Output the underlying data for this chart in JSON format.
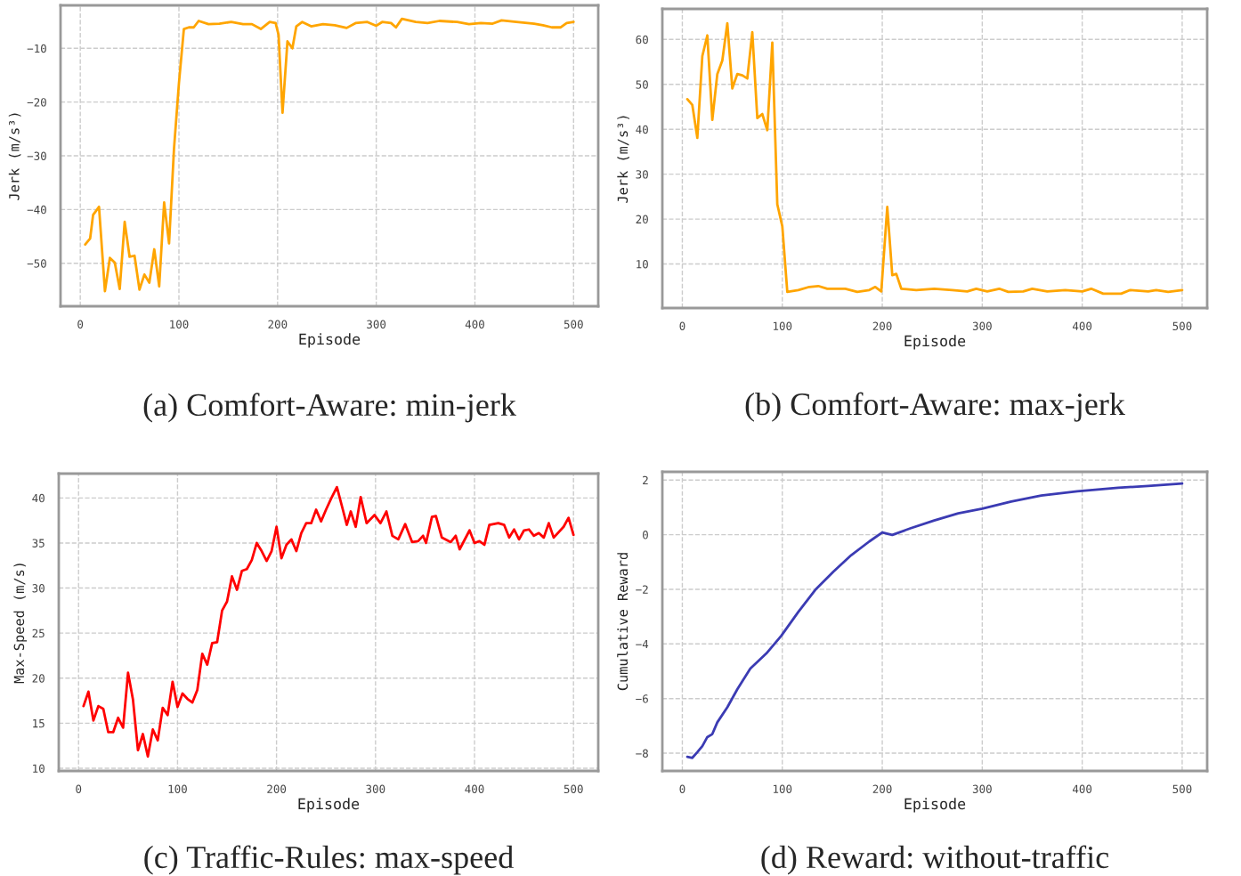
{
  "chart_data": [
    {
      "type": "line",
      "xlabel": "Episode",
      "ylabel": "Jerk (m/s³)",
      "annotations": [
        "(a) Comfort-Aware: min-jerk"
      ],
      "grid": true,
      "xlim": [
        -20,
        525
      ],
      "ylim": [
        -58,
        -2
      ],
      "xticks": [
        0,
        100,
        200,
        300,
        400,
        500
      ],
      "yticks": [
        {
          "value": -50,
          "label": "−50"
        },
        {
          "value": -40,
          "label": "−40"
        },
        {
          "value": -30,
          "label": "−30"
        },
        {
          "value": -20,
          "label": "−20"
        },
        {
          "value": -10,
          "label": "−10"
        }
      ],
      "x": [
        5,
        10,
        13,
        19,
        25,
        30,
        35,
        40,
        45,
        50,
        55,
        60,
        65,
        70,
        75,
        80,
        85,
        90,
        95,
        100,
        105,
        110,
        115,
        120,
        130,
        141,
        153,
        165,
        174,
        183,
        192,
        198,
        201,
        205,
        210,
        215,
        219,
        225,
        234,
        246,
        258,
        270,
        279,
        291,
        300,
        306,
        315,
        320,
        326,
        340,
        352,
        364,
        382,
        394,
        406,
        418,
        427,
        442,
        460,
        469,
        478,
        487,
        493,
        500
      ],
      "series": [
        {
          "color": "#ffa500",
          "values": [
            -46.5,
            -45.4,
            -41,
            -39.5,
            -55.2,
            -49,
            -49.9,
            -54.8,
            -42.3,
            -48.8,
            -48.6,
            -54.9,
            -52.1,
            -53.6,
            -47.4,
            -54.3,
            -38.7,
            -46.3,
            -28.7,
            -16.5,
            -6.4,
            -6.1,
            -6.1,
            -4.9,
            -5.5,
            -5.4,
            -5.1,
            -5.5,
            -5.5,
            -6.4,
            -5.1,
            -5.3,
            -7.5,
            -22,
            -8.7,
            -10,
            -5.9,
            -5.1,
            -5.9,
            -5.5,
            -5.7,
            -6.2,
            -5.3,
            -5.1,
            -5.8,
            -5.1,
            -5.3,
            -6.1,
            -4.5,
            -5.1,
            -5.3,
            -4.9,
            -5.1,
            -5.5,
            -5.3,
            -5.4,
            -4.8,
            -5.1,
            -5.4,
            -5.7,
            -6.1,
            -6.1,
            -5.3,
            -5.1
          ]
        }
      ]
    },
    {
      "type": "line",
      "xlabel": "Episode",
      "ylabel": "Jerk (m/s³)",
      "annotations": [
        "(b) Comfort-Aware: max-jerk"
      ],
      "grid": true,
      "xlim": [
        -20,
        525
      ],
      "ylim": [
        0.2,
        66.8
      ],
      "xticks": [
        0,
        100,
        200,
        300,
        400,
        500
      ],
      "yticks": [
        10,
        20,
        30,
        40,
        50,
        60
      ],
      "x": [
        5,
        10,
        15,
        20,
        25,
        30,
        35,
        40,
        45,
        50,
        55,
        60,
        65,
        70,
        75,
        80,
        85,
        90,
        95,
        100,
        105,
        116,
        127,
        136,
        145,
        163,
        175,
        187,
        193,
        199,
        205,
        210,
        214,
        219,
        234,
        252,
        270,
        285,
        294,
        305,
        317,
        326,
        341,
        350,
        365,
        383,
        400,
        409,
        421,
        439,
        448,
        466,
        474,
        486,
        500
      ],
      "series": [
        {
          "color": "#ffa500",
          "values": [
            46.7,
            45.4,
            38.1,
            56.3,
            60.9,
            42.1,
            52.3,
            55.3,
            63.6,
            49.1,
            52.3,
            52.0,
            51.3,
            61.6,
            42.5,
            43.4,
            39.8,
            59.3,
            23.3,
            18.4,
            3.8,
            4.2,
            4.9,
            5.1,
            4.5,
            4.5,
            3.8,
            4.2,
            4.9,
            3.9,
            22.7,
            7.5,
            7.8,
            4.5,
            4.2,
            4.5,
            4.2,
            3.9,
            4.5,
            3.9,
            4.5,
            3.8,
            3.9,
            4.5,
            3.9,
            4.2,
            3.9,
            4.5,
            3.4,
            3.4,
            4.2,
            3.9,
            4.2,
            3.8,
            4.2
          ]
        }
      ]
    },
    {
      "type": "line",
      "xlabel": "Episode",
      "ylabel": "Max-Speed (m/s)",
      "annotations": [
        "(c) Traffic-Rules: max-speed"
      ],
      "grid": true,
      "xlim": [
        -20,
        525
      ],
      "ylim": [
        9.7,
        42.7
      ],
      "xticks": [
        0,
        100,
        200,
        300,
        400,
        500
      ],
      "yticks": [
        10,
        15,
        20,
        25,
        30,
        35,
        40
      ],
      "x": [
        5,
        10,
        15,
        20,
        25,
        30,
        35,
        40,
        45,
        50,
        55,
        60,
        65,
        70,
        75,
        80,
        85,
        90,
        95,
        100,
        105,
        110,
        115,
        120,
        125,
        130,
        135,
        140,
        145,
        150,
        155,
        160,
        165,
        170,
        175,
        180,
        185,
        190,
        195,
        200,
        205,
        210,
        215,
        220,
        225,
        230,
        235,
        240,
        245,
        250,
        255,
        261,
        267,
        271,
        275,
        280,
        285,
        291,
        299,
        305,
        311,
        317,
        323,
        330,
        337,
        343,
        348,
        351,
        357,
        361,
        367,
        376,
        381,
        385,
        395,
        400,
        405,
        410,
        415,
        424,
        430,
        435,
        440,
        445,
        450,
        455,
        460,
        465,
        470,
        475,
        480,
        490,
        495,
        500
      ],
      "series": [
        {
          "color": "#ff0000",
          "values": [
            16.9,
            18.5,
            15.3,
            16.9,
            16.6,
            14.0,
            14.0,
            15.6,
            14.5,
            20.6,
            17.6,
            12.0,
            13.8,
            11.3,
            14.3,
            13.1,
            16.7,
            15.9,
            19.6,
            16.8,
            18.3,
            17.7,
            17.3,
            18.7,
            22.7,
            21.5,
            23.9,
            24.0,
            27.5,
            28.5,
            31.3,
            29.8,
            31.9,
            32.1,
            33.1,
            35.0,
            34.1,
            33.0,
            34.1,
            36.8,
            33.3,
            34.8,
            35.4,
            34.1,
            36.1,
            37.2,
            37.2,
            38.7,
            37.4,
            38.7,
            39.9,
            41.2,
            38.7,
            37.0,
            38.5,
            36.8,
            40.1,
            37.2,
            38.1,
            37.2,
            38.5,
            35.8,
            35.4,
            37.1,
            35.1,
            35.2,
            35.8,
            35.0,
            37.9,
            38.0,
            35.6,
            35.1,
            35.8,
            34.3,
            36.4,
            35.0,
            35.2,
            34.8,
            37.0,
            37.2,
            37.0,
            35.6,
            36.5,
            35.4,
            36.4,
            36.5,
            35.8,
            36.1,
            35.6,
            37.2,
            35.6,
            36.8,
            37.8,
            35.9
          ]
        }
      ]
    },
    {
      "type": "line",
      "xlabel": "Episode",
      "ylabel": "Cumulative Reward",
      "annotations": [
        "(d) Reward: without-traffic"
      ],
      "grid": true,
      "xlim": [
        -20,
        525
      ],
      "ylim": [
        -8.65,
        2.3
      ],
      "xticks": [
        0,
        100,
        200,
        300,
        400,
        500
      ],
      "yticks": [
        {
          "value": -8,
          "label": "−8"
        },
        {
          "value": -6,
          "label": "−6"
        },
        {
          "value": -4,
          "label": "−4"
        },
        {
          "value": -2,
          "label": "−2"
        },
        0,
        2
      ],
      "x": [
        5,
        10,
        15,
        20,
        25,
        30,
        35,
        45,
        55,
        68,
        84,
        99,
        116,
        133,
        151,
        169,
        187,
        200,
        210,
        228,
        252,
        276,
        300,
        329,
        359,
        395,
        436,
        466,
        500
      ],
      "series": [
        {
          "color": "#3b3bb3",
          "values": [
            -8.13,
            -8.17,
            -7.96,
            -7.74,
            -7.41,
            -7.3,
            -6.87,
            -6.32,
            -5.66,
            -4.9,
            -4.35,
            -3.7,
            -2.83,
            -2.02,
            -1.36,
            -0.75,
            -0.25,
            0.08,
            -0.01,
            0.23,
            0.52,
            0.78,
            0.95,
            1.21,
            1.43,
            1.59,
            1.72,
            1.78,
            1.87
          ]
        }
      ]
    }
  ]
}
